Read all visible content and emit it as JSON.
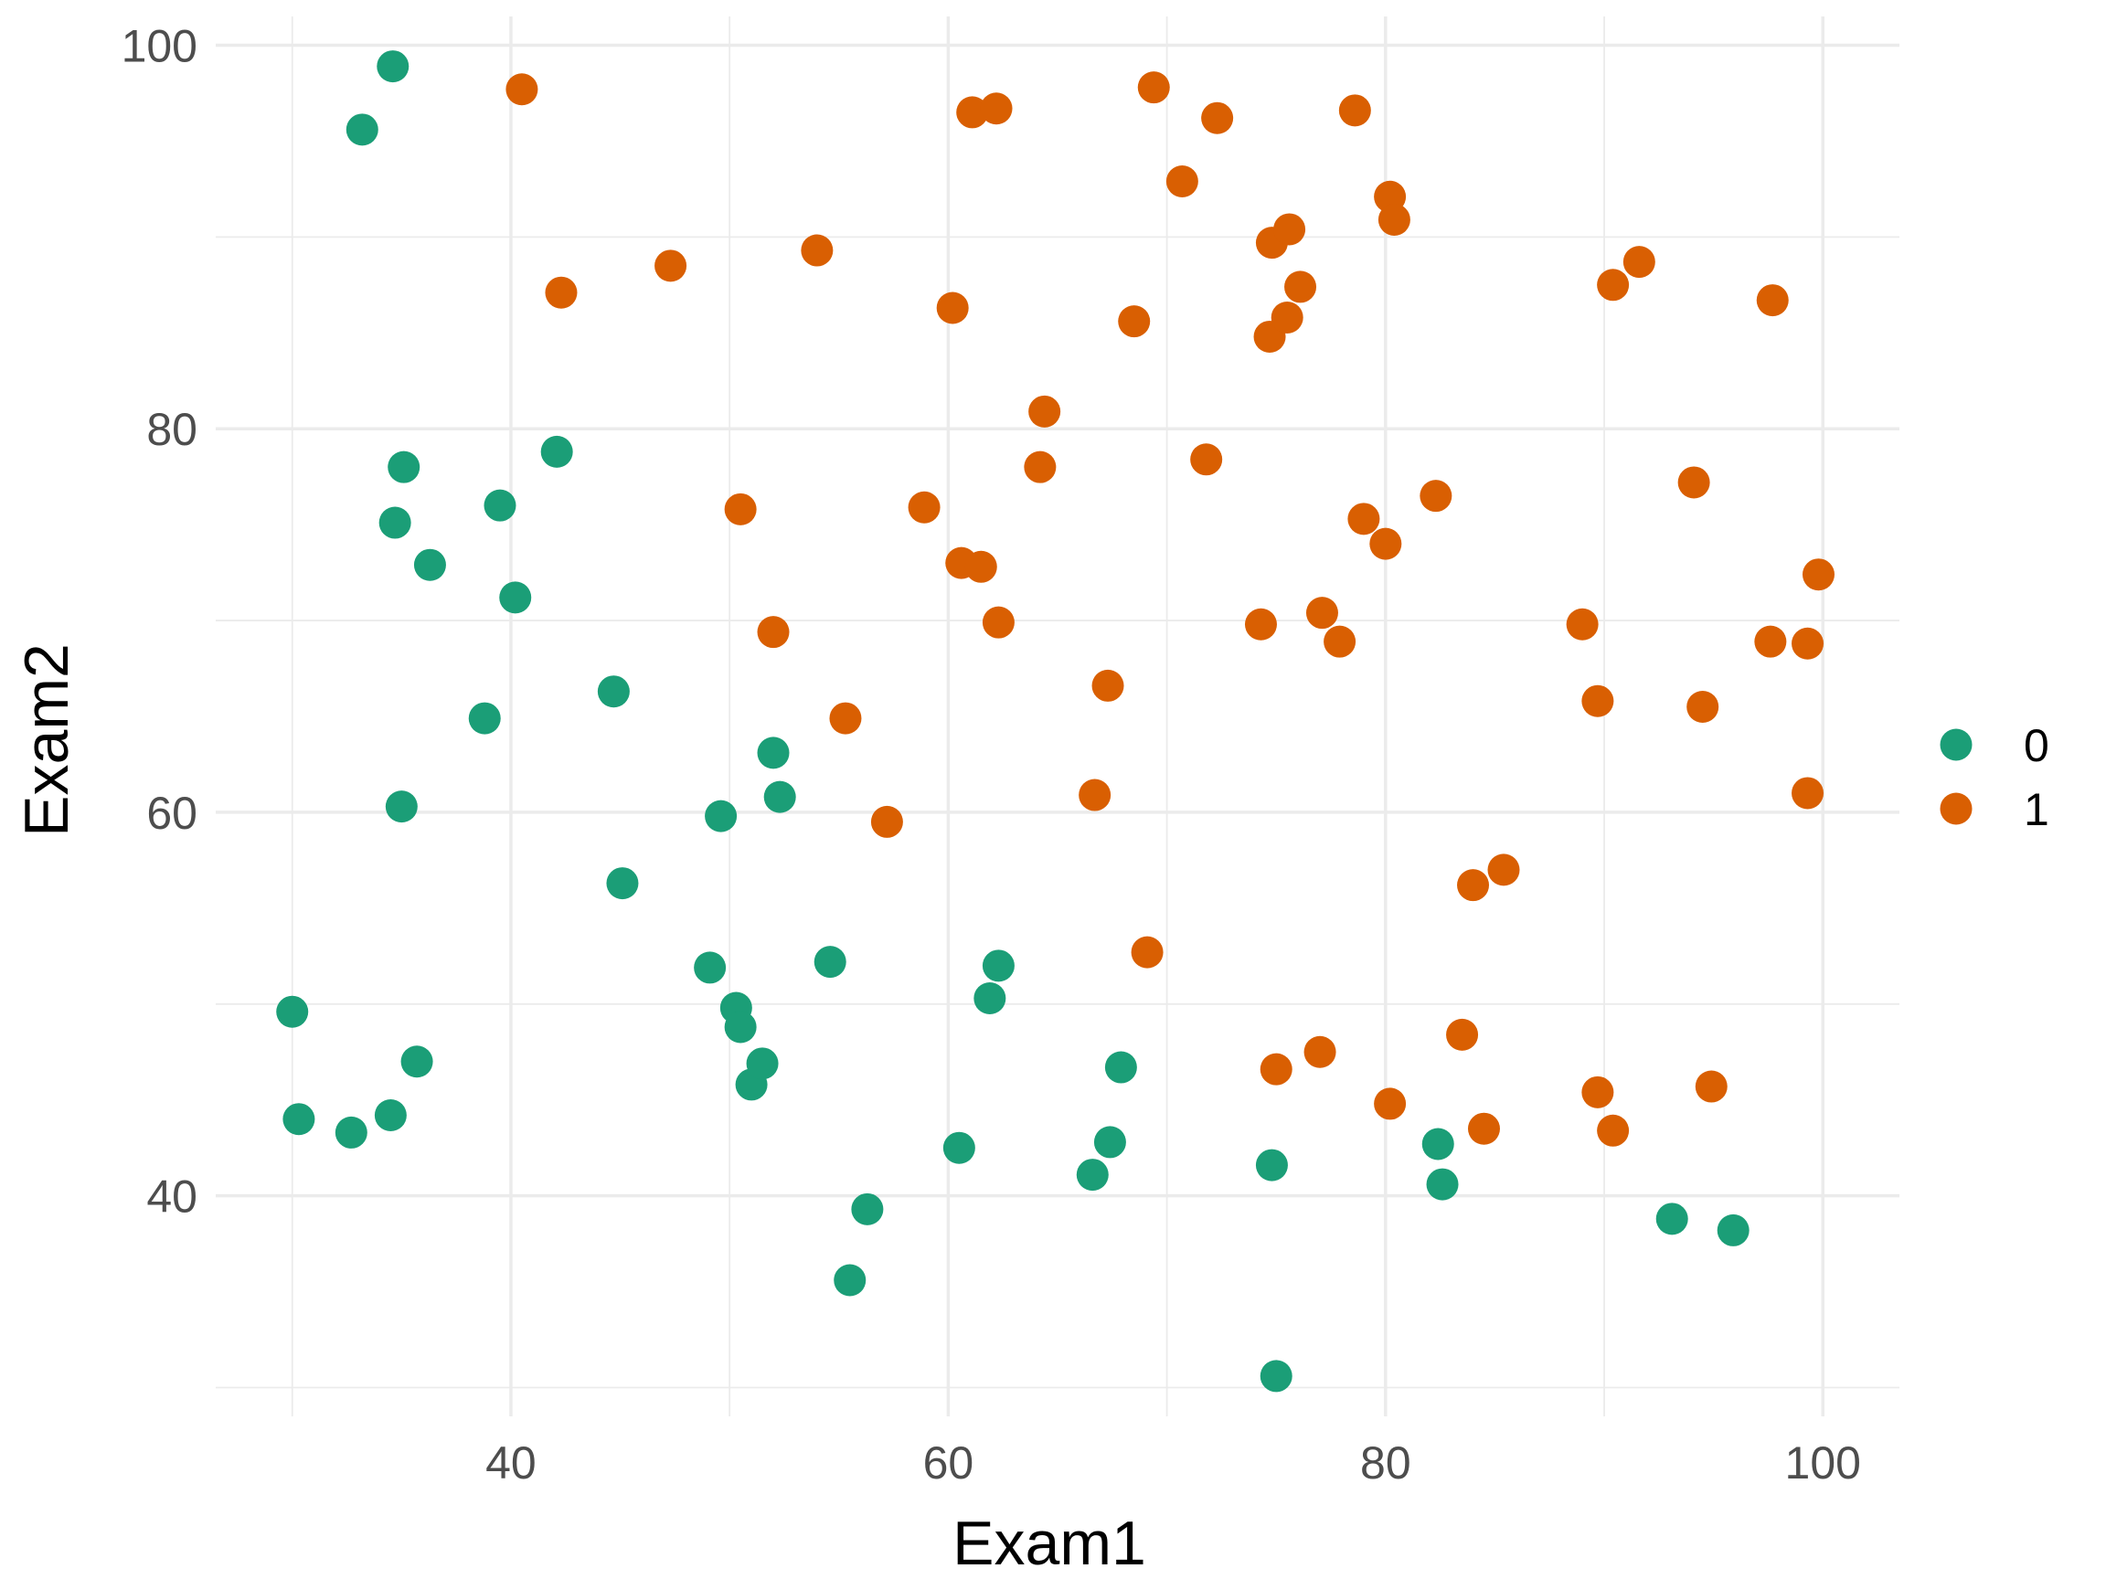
{
  "chart_data": {
    "type": "scatter",
    "xlabel": "Exam1",
    "ylabel": "Exam2",
    "xlim": [
      26.5,
      103.5
    ],
    "ylim": [
      28.5,
      101.5
    ],
    "x_ticks": [
      40,
      60,
      80,
      100
    ],
    "y_ticks": [
      40,
      60,
      80,
      100
    ],
    "x_tick_labels": [
      "40",
      "60",
      "80",
      "100"
    ],
    "y_tick_labels": [
      "40",
      "60",
      "80",
      "100"
    ],
    "grid": true,
    "legend": {
      "position": "right",
      "entries": [
        {
          "label": "0",
          "color": "#1b9e77"
        },
        {
          "label": "1",
          "color": "#d95f02"
        }
      ]
    },
    "series": [
      {
        "color": "#1b9e77",
        "points": [
          [
            34.6,
            98.9
          ],
          [
            33.2,
            95.6
          ],
          [
            35.1,
            78.0
          ],
          [
            34.7,
            75.1
          ],
          [
            36.3,
            72.9
          ],
          [
            39.5,
            76.0
          ],
          [
            40.2,
            71.2
          ],
          [
            42.1,
            78.8
          ],
          [
            38.8,
            64.9
          ],
          [
            44.7,
            66.3
          ],
          [
            35.0,
            60.3
          ],
          [
            45.1,
            56.3
          ],
          [
            30.0,
            49.6
          ],
          [
            30.3,
            44.0
          ],
          [
            32.7,
            43.3
          ],
          [
            34.5,
            44.2
          ],
          [
            35.7,
            47.0
          ],
          [
            49.1,
            51.9
          ],
          [
            50.3,
            49.8
          ],
          [
            50.5,
            48.8
          ],
          [
            51.0,
            45.8
          ],
          [
            51.5,
            46.9
          ],
          [
            49.6,
            59.8
          ],
          [
            52.0,
            63.1
          ],
          [
            52.3,
            60.8
          ],
          [
            54.6,
            52.2
          ],
          [
            62.3,
            52.0
          ],
          [
            61.9,
            50.3
          ],
          [
            60.5,
            42.5
          ],
          [
            56.3,
            39.3
          ],
          [
            55.5,
            35.6
          ],
          [
            67.9,
            46.7
          ],
          [
            67.4,
            42.8
          ],
          [
            66.6,
            41.1
          ],
          [
            74.8,
            41.6
          ],
          [
            75.0,
            30.6
          ],
          [
            82.4,
            42.7
          ],
          [
            82.6,
            40.6
          ],
          [
            93.1,
            38.8
          ],
          [
            95.9,
            38.2
          ]
        ]
      },
      {
        "color": "#d95f02",
        "points": [
          [
            40.5,
            97.7
          ],
          [
            42.3,
            87.1
          ],
          [
            47.3,
            88.5
          ],
          [
            54.0,
            89.3
          ],
          [
            61.1,
            96.5
          ],
          [
            62.2,
            96.7
          ],
          [
            69.4,
            97.8
          ],
          [
            72.3,
            96.2
          ],
          [
            78.6,
            96.6
          ],
          [
            70.7,
            92.9
          ],
          [
            80.2,
            92.1
          ],
          [
            80.4,
            90.9
          ],
          [
            74.8,
            89.7
          ],
          [
            75.6,
            90.4
          ],
          [
            76.1,
            87.4
          ],
          [
            60.2,
            86.3
          ],
          [
            68.5,
            85.6
          ],
          [
            74.7,
            84.8
          ],
          [
            75.5,
            85.8
          ],
          [
            64.4,
            80.9
          ],
          [
            64.2,
            78.0
          ],
          [
            71.8,
            78.4
          ],
          [
            50.5,
            75.8
          ],
          [
            58.9,
            75.9
          ],
          [
            60.6,
            73.0
          ],
          [
            61.5,
            72.8
          ],
          [
            79.0,
            75.3
          ],
          [
            80.0,
            74.0
          ],
          [
            82.3,
            76.5
          ],
          [
            77.1,
            70.4
          ],
          [
            74.3,
            69.8
          ],
          [
            77.9,
            68.9
          ],
          [
            62.3,
            69.9
          ],
          [
            52.0,
            69.4
          ],
          [
            55.3,
            64.9
          ],
          [
            67.3,
            66.6
          ],
          [
            66.7,
            60.9
          ],
          [
            57.2,
            59.5
          ],
          [
            69.1,
            52.7
          ],
          [
            75.0,
            46.6
          ],
          [
            77.0,
            47.5
          ],
          [
            80.2,
            44.8
          ],
          [
            83.5,
            48.4
          ],
          [
            84.0,
            56.2
          ],
          [
            85.4,
            57.0
          ],
          [
            84.5,
            43.5
          ],
          [
            89.7,
            45.4
          ],
          [
            90.4,
            43.4
          ],
          [
            94.9,
            45.7
          ],
          [
            89.0,
            69.8
          ],
          [
            89.7,
            65.8
          ],
          [
            94.5,
            65.5
          ],
          [
            94.1,
            77.2
          ],
          [
            97.6,
            68.9
          ],
          [
            99.3,
            68.8
          ],
          [
            99.8,
            72.4
          ],
          [
            99.3,
            61.0
          ],
          [
            90.4,
            87.5
          ],
          [
            91.6,
            88.7
          ],
          [
            97.7,
            86.7
          ]
        ]
      }
    ]
  }
}
